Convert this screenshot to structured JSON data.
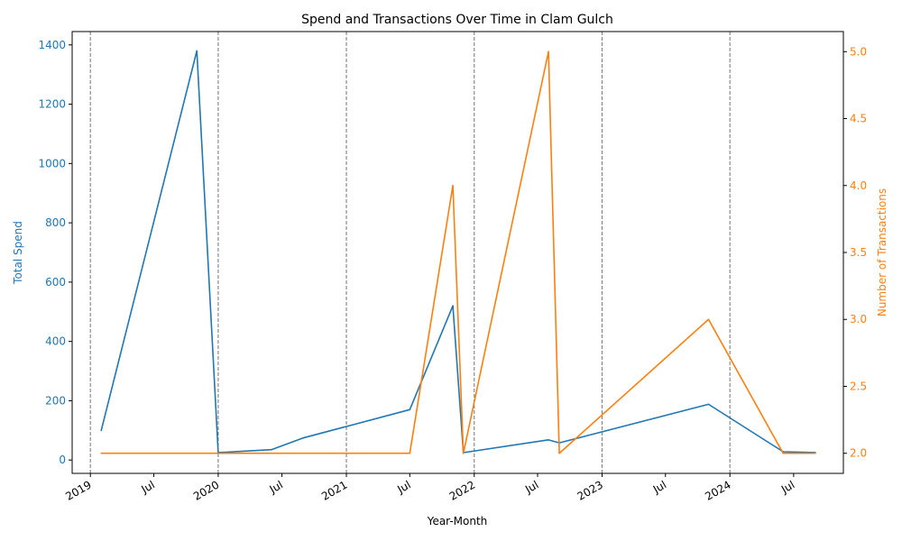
{
  "chart_data": {
    "type": "line",
    "title": "Spend and Transactions Over Time in Clam Gulch",
    "xlabel": "Year-Month",
    "ylabel_left": "Total Spend",
    "ylabel_right": "Number of Transactions",
    "xlim": [
      "2018-11-10",
      "2024-11-20"
    ],
    "ylim_left": [
      -45,
      1445
    ],
    "ylim_right": [
      1.85,
      5.15
    ],
    "x_ticks": [
      {
        "date": "2019-01-01",
        "label": "2019"
      },
      {
        "date": "2019-07-01",
        "label": "Jul"
      },
      {
        "date": "2020-01-01",
        "label": "2020"
      },
      {
        "date": "2020-07-01",
        "label": "Jul"
      },
      {
        "date": "2021-01-01",
        "label": "2021"
      },
      {
        "date": "2021-07-01",
        "label": "Jul"
      },
      {
        "date": "2022-01-01",
        "label": "2022"
      },
      {
        "date": "2022-07-01",
        "label": "Jul"
      },
      {
        "date": "2023-01-01",
        "label": "2023"
      },
      {
        "date": "2023-07-01",
        "label": "Jul"
      },
      {
        "date": "2024-01-01",
        "label": "2024"
      },
      {
        "date": "2024-07-01",
        "label": "Jul"
      }
    ],
    "y_ticks_left": [
      0,
      200,
      400,
      600,
      800,
      1000,
      1200,
      1400
    ],
    "y_ticks_left_labels": [
      "0",
      "200",
      "400",
      "600",
      "800",
      "1000",
      "1200",
      "1400"
    ],
    "y_ticks_right": [
      2.0,
      2.5,
      3.0,
      3.5,
      4.0,
      4.5,
      5.0
    ],
    "y_ticks_right_labels": [
      "2.0",
      "2.5",
      "3.0",
      "3.5",
      "4.0",
      "4.5",
      "5.0"
    ],
    "vlines": [
      "2019-01-01",
      "2020-01-01",
      "2021-01-01",
      "2022-01-01",
      "2023-01-01",
      "2024-01-01"
    ],
    "grid": false,
    "series": [
      {
        "axis": "left",
        "color": "#1f77b4",
        "x": [
          "2019-02-01",
          "2019-11-01",
          "2020-01-01",
          "2020-06-01",
          "2020-09-01",
          "2021-07-01",
          "2021-11-01",
          "2021-12-01",
          "2022-08-01",
          "2022-09-01",
          "2023-11-01",
          "2024-06-01",
          "2024-09-01"
        ],
        "values": [
          100,
          1380,
          25,
          35,
          75,
          170,
          520,
          25,
          68,
          58,
          188,
          28,
          25
        ]
      },
      {
        "axis": "right",
        "color": "#ff7f0e",
        "x": [
          "2019-02-01",
          "2019-11-01",
          "2020-01-01",
          "2020-06-01",
          "2020-09-01",
          "2021-07-01",
          "2021-11-01",
          "2021-12-01",
          "2022-08-01",
          "2022-09-01",
          "2023-11-01",
          "2024-06-01",
          "2024-09-01"
        ],
        "values": [
          2,
          2,
          2,
          2,
          2,
          2,
          4,
          2,
          5,
          2,
          3,
          2,
          2
        ]
      }
    ],
    "colors": {
      "left_axis": "#1f77b4",
      "right_axis": "#ff7f0e",
      "vline": "#808080",
      "axis": "#000000"
    }
  }
}
